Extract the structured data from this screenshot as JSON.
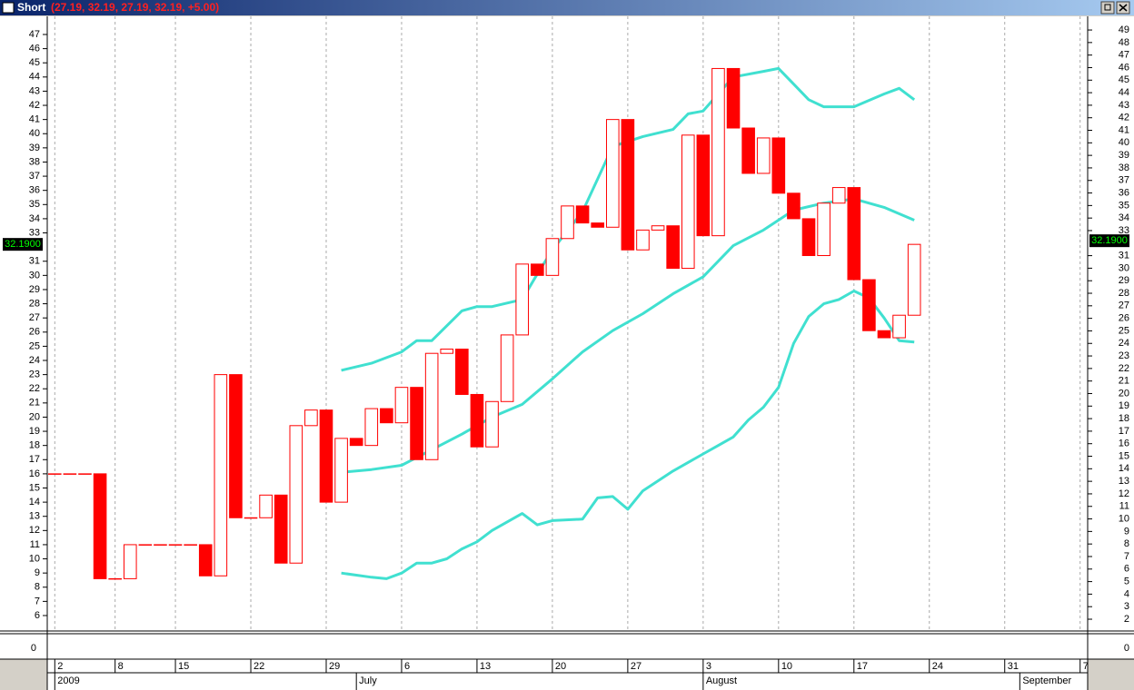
{
  "window_title": "Short",
  "window_values": "(27.19, 32.19, 27.19, 32.19, +5.00)",
  "chart_data": {
    "type": "candlestick",
    "x": [
      0,
      1,
      2,
      3,
      4,
      5,
      6,
      7,
      8,
      9,
      10,
      11,
      12,
      13,
      14,
      15,
      16,
      17,
      18,
      19,
      20,
      21,
      22,
      23,
      24,
      25,
      26,
      27,
      28,
      29,
      30,
      31,
      32,
      33,
      34,
      35,
      36,
      37,
      38,
      39,
      40,
      41,
      42,
      43,
      44,
      45,
      46,
      47,
      48,
      49,
      50,
      51,
      52,
      53,
      54,
      55,
      56,
      57
    ],
    "open": [
      16,
      16,
      16,
      16,
      8.6,
      8.6,
      11,
      11,
      11,
      11,
      11,
      8.8,
      23,
      12.9,
      12.9,
      14.5,
      9.7,
      19.4,
      20.5,
      14,
      18.5,
      18,
      20.6,
      19.6,
      22.1,
      17,
      24.5,
      24.8,
      21.6,
      17.9,
      21.1,
      25.8,
      30.8,
      30,
      32.6,
      34.9,
      33.7,
      33.4,
      41,
      31.8,
      33.2,
      33.5,
      30.5,
      39.9,
      32.8,
      44.6,
      40.4,
      37.2,
      39.7,
      35.8,
      34,
      31.4,
      35.1,
      36.2,
      29.7,
      26.1,
      25.6,
      27.19
    ],
    "close": [
      16,
      16,
      16,
      8.6,
      8.6,
      11,
      11,
      11,
      11,
      11,
      8.8,
      23,
      12.9,
      12.9,
      14.5,
      9.7,
      19.4,
      20.5,
      14,
      18.5,
      18,
      20.6,
      19.6,
      22.1,
      17,
      24.5,
      24.8,
      21.6,
      17.9,
      21.1,
      25.8,
      30.8,
      30,
      32.6,
      34.9,
      33.7,
      33.4,
      41,
      31.8,
      33.2,
      33.5,
      30.5,
      39.9,
      32.8,
      44.6,
      40.4,
      37.2,
      39.7,
      35.8,
      34,
      31.4,
      35.1,
      36.2,
      29.7,
      26.1,
      25.6,
      27.19,
      32.19
    ],
    "color": "#ff0000",
    "xlim": [
      -0.5,
      68.5
    ],
    "xticks": [
      {
        "value": 0,
        "label": "2"
      },
      {
        "value": 4,
        "label": "8"
      },
      {
        "value": 8,
        "label": "15"
      },
      {
        "value": 13,
        "label": "22"
      },
      {
        "value": 18,
        "label": "29"
      },
      {
        "value": 23,
        "label": "6"
      },
      {
        "value": 28,
        "label": "13"
      },
      {
        "value": 33,
        "label": "20"
      },
      {
        "value": 38,
        "label": "27"
      },
      {
        "value": 43,
        "label": "3"
      },
      {
        "value": 48,
        "label": "10"
      },
      {
        "value": 53,
        "label": "17"
      },
      {
        "value": 58,
        "label": "24"
      },
      {
        "value": 63,
        "label": "31"
      },
      {
        "value": 68,
        "label": "7"
      }
    ],
    "month_ticks": [
      {
        "value": 0,
        "label": "2009"
      },
      {
        "value": 20,
        "label": "July"
      },
      {
        "value": 43,
        "label": "August"
      },
      {
        "value": 64,
        "label": "September"
      }
    ],
    "ylim": [
      4.91,
      48.28
    ],
    "yticks": [
      6,
      7,
      8,
      9,
      10,
      11,
      12,
      13,
      14,
      15,
      16,
      17,
      18,
      19,
      20,
      21,
      22,
      23,
      24,
      25,
      26,
      27,
      28,
      29,
      30,
      31,
      33,
      34,
      35,
      36,
      37,
      38,
      39,
      40,
      41,
      42,
      43,
      44,
      45,
      46,
      47
    ],
    "y2lim": [
      1.06,
      50.09
    ],
    "y2ticks": [
      2,
      3,
      4,
      5,
      6,
      7,
      8,
      9,
      10,
      11,
      12,
      13,
      14,
      15,
      16,
      17,
      18,
      19,
      20,
      21,
      22,
      23,
      24,
      25,
      26,
      27,
      28,
      29,
      30,
      31,
      33,
      34,
      35,
      36,
      37,
      38,
      39,
      40,
      41,
      42,
      43,
      44,
      45,
      46,
      47,
      48,
      49
    ],
    "grid": true,
    "series": [
      {
        "color": "#40e0d0",
        "x": [
          19,
          21,
          23,
          24,
          25,
          27,
          28,
          29,
          31,
          32,
          33,
          35,
          37,
          39,
          41,
          42,
          43,
          45,
          47,
          48,
          49,
          50,
          51,
          53,
          55,
          56,
          57
        ],
        "values": [
          23.3,
          23.8,
          24.6,
          25.4,
          25.4,
          27.5,
          27.8,
          27.8,
          28.3,
          30.1,
          31.8,
          34.5,
          39.1,
          39.8,
          40.3,
          41.4,
          41.6,
          44.0,
          44.4,
          44.6,
          43.5,
          42.4,
          41.9,
          41.9,
          42.8,
          43.2,
          42.4
        ]
      },
      {
        "color": "#40e0d0",
        "x": [
          19,
          21,
          23,
          25,
          27,
          29,
          31,
          33,
          35,
          37,
          39,
          41,
          43,
          45,
          47,
          49,
          51,
          53,
          55,
          57
        ],
        "values": [
          16.1,
          16.3,
          16.6,
          17.7,
          18.8,
          20.0,
          20.9,
          22.7,
          24.6,
          26.1,
          27.3,
          28.7,
          29.9,
          32.1,
          33.2,
          34.6,
          35.1,
          35.4,
          34.8,
          33.9
        ]
      },
      {
        "color": "#40e0d0",
        "x": [
          19,
          21,
          22,
          23,
          24,
          25,
          26,
          27,
          28,
          29,
          31,
          32,
          33,
          35,
          36,
          37,
          38,
          39,
          41,
          43,
          44,
          45,
          46,
          47,
          48,
          49,
          50,
          51,
          52,
          53,
          54,
          55,
          56,
          57
        ],
        "values": [
          9.0,
          8.7,
          8.6,
          9.0,
          9.7,
          9.7,
          10.0,
          10.7,
          11.2,
          12.0,
          13.2,
          12.4,
          12.7,
          12.8,
          14.3,
          14.4,
          13.5,
          14.8,
          16.2,
          17.4,
          18.0,
          18.6,
          19.8,
          20.7,
          22.1,
          25.2,
          27.1,
          28.0,
          28.3,
          28.9,
          28.4,
          27.0,
          25.4,
          25.3
        ]
      }
    ],
    "last_value": {
      "value": 32.19,
      "label": "32.1900"
    },
    "lower_pane": {
      "yticks": [
        0
      ]
    }
  }
}
